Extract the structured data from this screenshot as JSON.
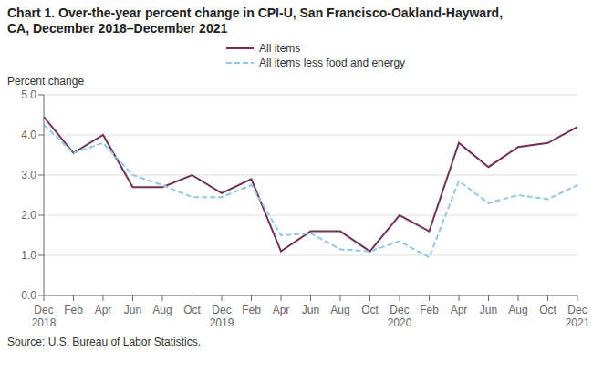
{
  "chart_data": {
    "type": "line",
    "title": "Chart 1. Over-the-year percent change in CPI-U, San Francisco-Oakland-Hayward,\nCA, December 2018–December 2021",
    "y_label": "Percent change",
    "annotations": [
      "Source: U.S. Bureau of Labor Statistics."
    ],
    "categories": [
      "Dec\n2018",
      "Feb",
      "Apr",
      "Jun",
      "Aug",
      "Oct",
      "Dec\n2019",
      "Feb",
      "Apr",
      "Jun",
      "Aug",
      "Oct",
      "Dec\n2020",
      "Feb",
      "Apr",
      "Jun",
      "Aug",
      "Oct",
      "Dec\n2021"
    ],
    "series": [
      {
        "name": "All items",
        "color": "#722F57",
        "line_style": "solid",
        "values": [
          4.45,
          3.55,
          4.0,
          2.7,
          2.7,
          3.0,
          2.55,
          2.9,
          1.1,
          1.6,
          1.6,
          1.1,
          2.0,
          1.6,
          3.8,
          3.2,
          3.7,
          3.8,
          4.2
        ]
      },
      {
        "name": "All items less food and energy",
        "color": "#8EC8E8",
        "line_style": "dashed",
        "values": [
          4.25,
          3.55,
          3.8,
          3.0,
          2.75,
          2.45,
          2.45,
          2.75,
          1.5,
          1.55,
          1.15,
          1.1,
          1.35,
          0.95,
          2.85,
          2.3,
          2.5,
          2.4,
          2.75
        ]
      }
    ],
    "ylim": [
      0.0,
      5.0
    ],
    "yticks": [
      {
        "value": 0,
        "label": "0.0"
      },
      {
        "value": 1,
        "label": "1.0"
      },
      {
        "value": 2,
        "label": "2.0"
      },
      {
        "value": 3,
        "label": "3.0"
      },
      {
        "value": 4,
        "label": "4.0"
      },
      {
        "value": 5,
        "label": "5.0"
      }
    ],
    "grid": "y",
    "legend": "top"
  }
}
